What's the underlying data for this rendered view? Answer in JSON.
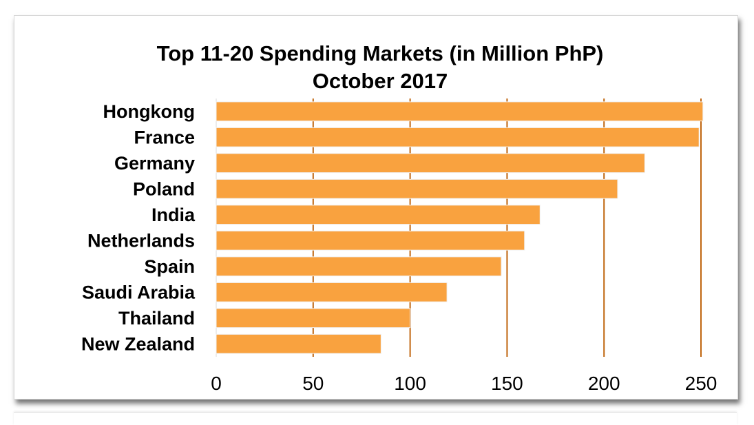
{
  "chart_data": {
    "type": "bar",
    "orientation": "horizontal",
    "title": "Top 11-20 Spending Markets (in Million PhP)",
    "subtitle": "October 2017",
    "categories": [
      "Hongkong",
      "France",
      "Germany",
      "Poland",
      "India",
      "Netherlands",
      "Spain",
      "Saudi Arabia",
      "Thailand",
      "New Zealand"
    ],
    "values": [
      251,
      249,
      221,
      207,
      167,
      159,
      147,
      119,
      100,
      85
    ],
    "xlim": [
      0,
      250
    ],
    "xticks": [
      "0",
      "50",
      "100",
      "150",
      "200",
      "250"
    ],
    "grid": true,
    "bar_color": "#f9a23f",
    "grid_color": "#c0650f"
  }
}
